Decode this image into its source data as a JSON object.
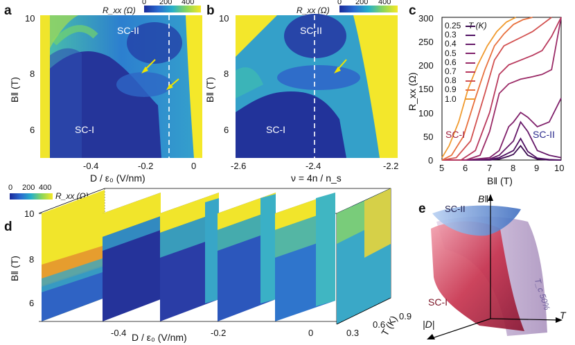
{
  "panels": {
    "a": {
      "label": "a",
      "colorbar": {
        "title": "R_xx (Ω)",
        "ticks": [
          "0",
          "200",
          "400"
        ]
      },
      "xticks": [
        "-0.4",
        "-0.2",
        "0"
      ],
      "yticks": [
        "10",
        "8",
        "6"
      ],
      "ylabel": "B‖ (T)",
      "xlabel": "D / ε₀ (V/nm)",
      "regions": [
        "SC-II",
        "SC-I"
      ]
    },
    "b": {
      "label": "b",
      "colorbar": {
        "title": "R_xx (Ω)",
        "ticks": [
          "0",
          "200",
          "400"
        ]
      },
      "xticks": [
        "-2.6",
        "-2.4",
        "-2.2"
      ],
      "yticks": [
        "10",
        "8",
        "6"
      ],
      "ylabel": "B‖ (T)",
      "xlabel": "ν = 4n / n_s",
      "regions": [
        "SC-II",
        "SC-I"
      ]
    },
    "c": {
      "label": "c",
      "xticks": [
        "5",
        "6",
        "7",
        "8",
        "9",
        "10"
      ],
      "yticks": [
        "300",
        "250",
        "200",
        "150",
        "100",
        "50",
        "0"
      ],
      "xlabel": "B‖ (T)",
      "ylabel": "R_xx (Ω)",
      "legend_title": "T (K)",
      "regions": [
        "SC-I",
        "SC-II"
      ]
    },
    "d": {
      "label": "d",
      "colorbar": {
        "title": "R_xx (Ω)",
        "ticks": [
          "0",
          "200",
          "400"
        ]
      },
      "yticks": [
        "10",
        "8",
        "6"
      ],
      "ylabel": "B‖ (T)",
      "xticks": [
        "-0.4",
        "-0.2",
        "0"
      ],
      "xlabel": "D / ε₀ (V/nm)",
      "tticks": [
        "0.3",
        "0.6",
        "0.9"
      ],
      "tlabel": "T (K)"
    },
    "e": {
      "label": "e",
      "axes": [
        "B‖",
        "T",
        "|D|"
      ],
      "regions": [
        "SC-II",
        "SC-I"
      ],
      "surface_label": "T_c 50%"
    }
  },
  "chart_data": {
    "type": "line",
    "title": "",
    "xlabel": "B‖ (T)",
    "ylabel": "R_xx (Ω)",
    "xlim": [
      5,
      10
    ],
    "ylim": [
      0,
      300
    ],
    "legend_title": "T (K)",
    "legend_position": "top-left",
    "series": [
      {
        "name": "0.25",
        "color": "#3a0a4f",
        "x": [
          5,
          6,
          7,
          7.4,
          7.8,
          8,
          8.3,
          8.6,
          9,
          9.5,
          10
        ],
        "y": [
          0,
          0,
          0,
          2,
          8,
          12,
          30,
          10,
          2,
          0,
          0
        ]
      },
      {
        "name": "0.3",
        "color": "#4e0f62",
        "x": [
          5,
          6,
          7,
          7.4,
          7.8,
          8,
          8.3,
          8.6,
          9,
          9.5,
          10
        ],
        "y": [
          0,
          0,
          1,
          5,
          15,
          20,
          45,
          18,
          4,
          1,
          0
        ]
      },
      {
        "name": "0.4",
        "color": "#651868",
        "x": [
          5,
          6,
          7,
          7.4,
          7.8,
          8,
          8.3,
          8.6,
          9,
          9.5,
          10
        ],
        "y": [
          0,
          0,
          2,
          10,
          30,
          40,
          80,
          60,
          20,
          10,
          5
        ]
      },
      {
        "name": "0.5",
        "color": "#7f1f6a",
        "x": [
          5,
          6,
          7,
          7.4,
          7.8,
          8,
          8.3,
          8.6,
          9,
          9.5,
          10
        ],
        "y": [
          0,
          0,
          5,
          20,
          70,
          80,
          100,
          90,
          70,
          80,
          130
        ]
      },
      {
        "name": "0.6",
        "color": "#9a2a66",
        "x": [
          5,
          6,
          6.6,
          7,
          7.4,
          7.8,
          8.3,
          8.8,
          9.2,
          9.6,
          10
        ],
        "y": [
          0,
          0,
          10,
          60,
          140,
          160,
          170,
          175,
          180,
          190,
          300
        ]
      },
      {
        "name": "0.7",
        "color": "#b8385c",
        "x": [
          5,
          5.8,
          6.4,
          7,
          7.4,
          7.8,
          8.3,
          8.8,
          9.2,
          9.6,
          10
        ],
        "y": [
          0,
          0,
          20,
          100,
          180,
          200,
          210,
          220,
          230,
          260,
          300
        ]
      },
      {
        "name": "0.8",
        "color": "#d2504f",
        "x": [
          5,
          5.6,
          6.2,
          6.8,
          7.2,
          7.6,
          8,
          8.4,
          8.8,
          9.2,
          9.6
        ],
        "y": [
          0,
          5,
          40,
          140,
          210,
          240,
          250,
          260,
          270,
          285,
          300
        ]
      },
      {
        "name": "0.9",
        "color": "#e8703d",
        "x": [
          5,
          5.4,
          5.9,
          6.4,
          6.8,
          7.2,
          7.6,
          8,
          8.4,
          8.8
        ],
        "y": [
          0,
          10,
          50,
          130,
          190,
          240,
          265,
          285,
          295,
          300
        ]
      },
      {
        "name": "1.0",
        "color": "#f09a2e",
        "x": [
          5,
          5.3,
          5.7,
          6.1,
          6.5,
          6.9,
          7.3,
          7.7,
          8.1
        ],
        "y": [
          5,
          30,
          80,
          150,
          200,
          240,
          270,
          290,
          300
        ]
      }
    ]
  }
}
